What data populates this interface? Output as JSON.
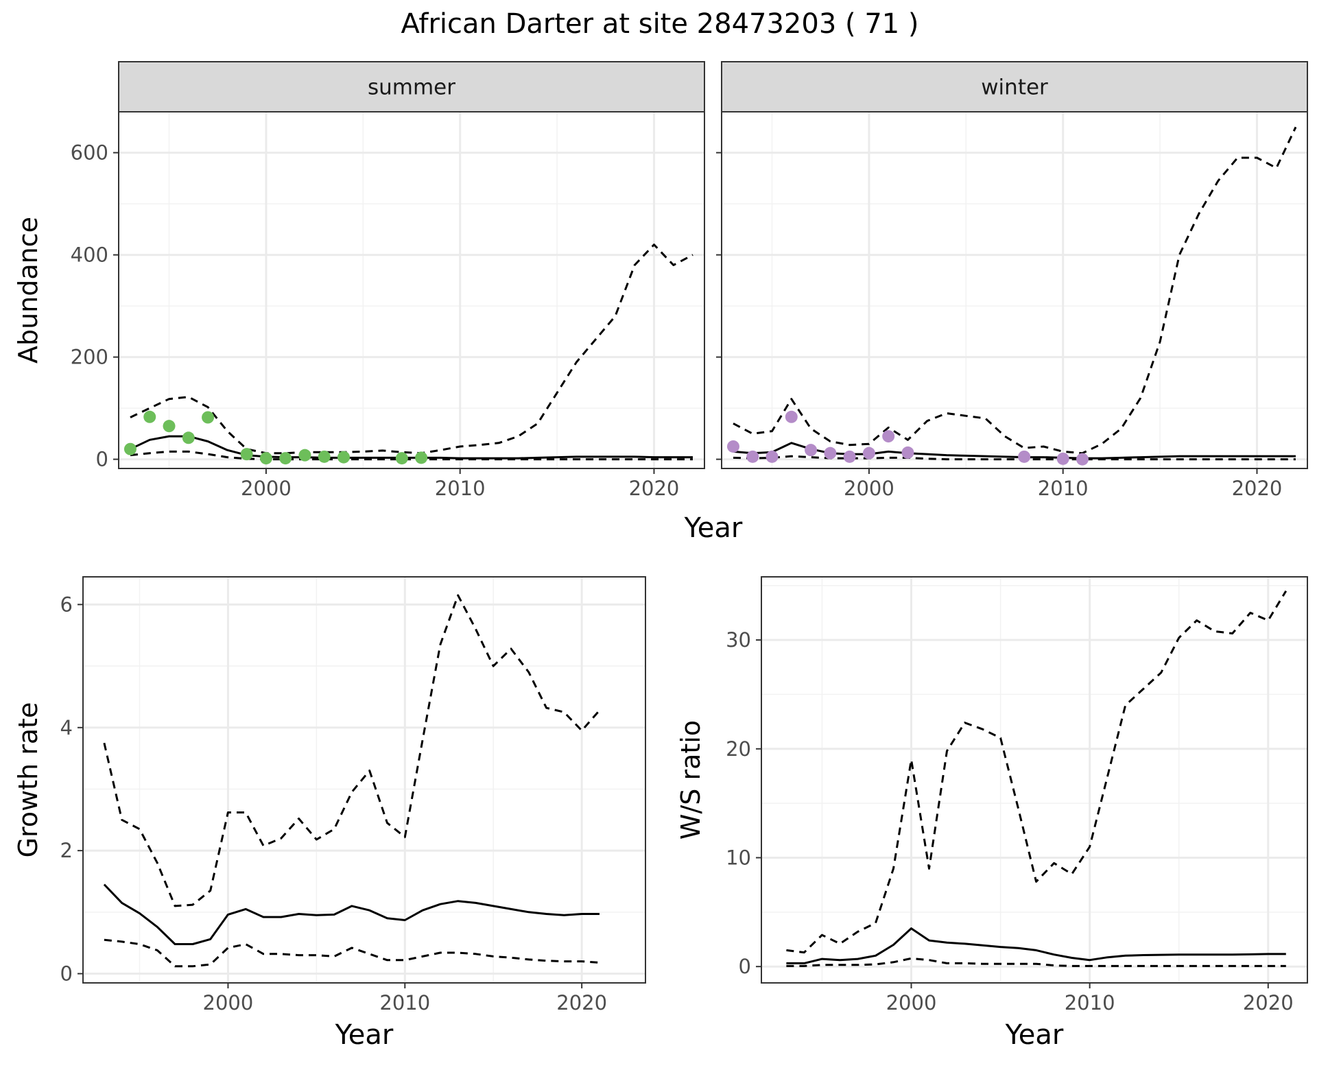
{
  "figure": {
    "title": "African Darter at site 28473203 ( 71 )"
  },
  "chart_data": [
    {
      "type": "line",
      "panel": "summer",
      "strip_label": "summer",
      "ylabel": "Abundance",
      "xlabel": "Year",
      "xlim": [
        1992.4,
        2022.6
      ],
      "ylim": [
        -18,
        680
      ],
      "xticks": [
        2000,
        2010,
        2020
      ],
      "yticks": [
        0,
        200,
        400,
        600
      ],
      "grid": true,
      "point_color": "#6DBE5A",
      "series": [
        {
          "role": "mean",
          "style": "solid",
          "x": [
            1993,
            1994,
            1995,
            1996,
            1997,
            1998,
            1999,
            2000,
            2001,
            2002,
            2003,
            2004,
            2005,
            2006,
            2007,
            2008,
            2009,
            2010,
            2011,
            2012,
            2013,
            2014,
            2015,
            2016,
            2017,
            2018,
            2019,
            2020,
            2021,
            2022
          ],
          "values": [
            20,
            38,
            45,
            45,
            35,
            18,
            8,
            5,
            4,
            4,
            3,
            3,
            3,
            3,
            3,
            3,
            3,
            2,
            2,
            2,
            2,
            3,
            4,
            5,
            5,
            5,
            5,
            4,
            4,
            4
          ]
        },
        {
          "role": "upper",
          "style": "dashed",
          "x": [
            1993,
            1994,
            1995,
            1996,
            1997,
            1998,
            1999,
            2000,
            2001,
            2002,
            2003,
            2004,
            2005,
            2006,
            2007,
            2008,
            2009,
            2010,
            2011,
            2012,
            2013,
            2014,
            2015,
            2016,
            2017,
            2018,
            2019,
            2020,
            2021,
            2022
          ],
          "values": [
            82,
            100,
            118,
            122,
            102,
            55,
            20,
            12,
            12,
            14,
            14,
            14,
            15,
            17,
            14,
            12,
            18,
            25,
            28,
            32,
            45,
            70,
            130,
            190,
            235,
            280,
            380,
            420,
            380,
            400
          ]
        },
        {
          "role": "lower",
          "style": "dashed",
          "x": [
            1993,
            1994,
            1995,
            1996,
            1997,
            1998,
            1999,
            2000,
            2001,
            2002,
            2003,
            2004,
            2005,
            2006,
            2007,
            2008,
            2009,
            2010,
            2011,
            2012,
            2013,
            2014,
            2015,
            2016,
            2017,
            2018,
            2019,
            2020,
            2021,
            2022
          ],
          "values": [
            8,
            12,
            15,
            15,
            10,
            4,
            1,
            0,
            0,
            0,
            0,
            0,
            0,
            0,
            0,
            0,
            0,
            0,
            0,
            0,
            0,
            0,
            0,
            0,
            0,
            0,
            0,
            0,
            0,
            0
          ]
        }
      ],
      "points": {
        "x": [
          1993,
          1994,
          1995,
          1996,
          1997,
          1999,
          2000,
          2001,
          2002,
          2003,
          2004,
          2007,
          2008
        ],
        "values": [
          20,
          83,
          65,
          42,
          82,
          10,
          2,
          2,
          8,
          5,
          4,
          2,
          3
        ]
      }
    },
    {
      "type": "line",
      "panel": "winter",
      "strip_label": "winter",
      "xlabel": "Year",
      "xlim": [
        1992.4,
        2022.6
      ],
      "ylim": [
        -18,
        680
      ],
      "xticks": [
        2000,
        2010,
        2020
      ],
      "yticks": [
        0,
        200,
        400,
        600
      ],
      "grid": true,
      "point_color": "#B48CC8",
      "series": [
        {
          "role": "mean",
          "style": "solid",
          "x": [
            1993,
            1994,
            1995,
            1996,
            1997,
            1998,
            1999,
            2000,
            2001,
            2002,
            2003,
            2004,
            2005,
            2006,
            2007,
            2008,
            2009,
            2010,
            2011,
            2012,
            2013,
            2014,
            2015,
            2016,
            2017,
            2018,
            2019,
            2020,
            2021,
            2022
          ],
          "values": [
            15,
            12,
            14,
            32,
            20,
            12,
            10,
            10,
            15,
            12,
            10,
            8,
            7,
            6,
            5,
            4,
            4,
            3,
            2,
            2,
            3,
            4,
            5,
            6,
            6,
            6,
            6,
            6,
            6,
            6
          ]
        },
        {
          "role": "upper",
          "style": "dashed",
          "x": [
            1993,
            1994,
            1995,
            1996,
            1997,
            1998,
            1999,
            2000,
            2001,
            2002,
            2003,
            2004,
            2005,
            2006,
            2007,
            2008,
            2009,
            2010,
            2011,
            2012,
            2013,
            2014,
            2015,
            2016,
            2017,
            2018,
            2019,
            2020,
            2021,
            2022
          ],
          "values": [
            70,
            50,
            55,
            118,
            60,
            35,
            28,
            30,
            62,
            38,
            75,
            90,
            85,
            80,
            45,
            22,
            25,
            15,
            12,
            30,
            60,
            120,
            230,
            400,
            480,
            545,
            590,
            590,
            570,
            650
          ]
        },
        {
          "role": "lower",
          "style": "dashed",
          "x": [
            1993,
            1994,
            1995,
            1996,
            1997,
            1998,
            1999,
            2000,
            2001,
            2002,
            2003,
            2004,
            2005,
            2006,
            2007,
            2008,
            2009,
            2010,
            2011,
            2012,
            2013,
            2014,
            2015,
            2016,
            2017,
            2018,
            2019,
            2020,
            2021,
            2022
          ],
          "values": [
            3,
            2,
            3,
            6,
            4,
            2,
            2,
            2,
            3,
            3,
            1,
            0,
            0,
            0,
            0,
            0,
            0,
            0,
            0,
            0,
            0,
            0,
            0,
            0,
            0,
            0,
            0,
            0,
            0,
            0
          ]
        }
      ],
      "points": {
        "x": [
          1993,
          1994,
          1995,
          1996,
          1997,
          1998,
          1999,
          2000,
          2001,
          2002,
          2008,
          2010,
          2011
        ],
        "values": [
          25,
          5,
          5,
          83,
          18,
          12,
          5,
          12,
          45,
          13,
          5,
          1,
          0
        ]
      }
    },
    {
      "type": "line",
      "panel": "growth",
      "ylabel": "Growth rate",
      "xlabel": "Year",
      "xlim": [
        1991.8,
        2023.6
      ],
      "ylim": [
        -0.15,
        6.45
      ],
      "xticks": [
        2000,
        2010,
        2020
      ],
      "yticks": [
        0,
        2,
        4,
        6
      ],
      "grid": true,
      "series": [
        {
          "role": "mean",
          "style": "solid",
          "x": [
            1993,
            1994,
            1995,
            1996,
            1997,
            1998,
            1999,
            2000,
            2001,
            2002,
            2003,
            2004,
            2005,
            2006,
            2007,
            2008,
            2009,
            2010,
            2011,
            2012,
            2013,
            2014,
            2015,
            2016,
            2017,
            2018,
            2019,
            2020,
            2021
          ],
          "values": [
            1.45,
            1.15,
            0.98,
            0.76,
            0.48,
            0.48,
            0.56,
            0.96,
            1.05,
            0.92,
            0.92,
            0.97,
            0.95,
            0.96,
            1.1,
            1.03,
            0.9,
            0.87,
            1.03,
            1.13,
            1.18,
            1.15,
            1.1,
            1.05,
            1.0,
            0.97,
            0.95,
            0.97,
            0.97
          ]
        },
        {
          "role": "upper",
          "style": "dashed",
          "x": [
            1993,
            1994,
            1995,
            1996,
            1997,
            1998,
            1999,
            2000,
            2001,
            2002,
            2003,
            2004,
            2005,
            2006,
            2007,
            2008,
            2009,
            2010,
            2011,
            2012,
            2013,
            2014,
            2015,
            2016,
            2017,
            2018,
            2019,
            2020,
            2021
          ],
          "values": [
            3.75,
            2.5,
            2.35,
            1.8,
            1.1,
            1.12,
            1.35,
            2.62,
            2.62,
            2.08,
            2.2,
            2.52,
            2.18,
            2.35,
            2.95,
            3.3,
            2.45,
            2.22,
            3.8,
            5.35,
            6.15,
            5.6,
            5.0,
            5.28,
            4.9,
            4.32,
            4.25,
            3.95,
            4.28
          ]
        },
        {
          "role": "lower",
          "style": "dashed",
          "x": [
            1993,
            1994,
            1995,
            1996,
            1997,
            1998,
            1999,
            2000,
            2001,
            2002,
            2003,
            2004,
            2005,
            2006,
            2007,
            2008,
            2009,
            2010,
            2011,
            2012,
            2013,
            2014,
            2015,
            2016,
            2017,
            2018,
            2019,
            2020,
            2021
          ],
          "values": [
            0.55,
            0.52,
            0.48,
            0.38,
            0.12,
            0.12,
            0.15,
            0.42,
            0.48,
            0.32,
            0.32,
            0.3,
            0.3,
            0.28,
            0.42,
            0.32,
            0.22,
            0.22,
            0.28,
            0.34,
            0.34,
            0.32,
            0.28,
            0.26,
            0.23,
            0.21,
            0.2,
            0.2,
            0.18
          ]
        }
      ]
    },
    {
      "type": "line",
      "panel": "ratio",
      "ylabel": "W/S ratio",
      "xlabel": "Year",
      "xlim": [
        1991.6,
        2022.2
      ],
      "ylim": [
        -1.5,
        35.8
      ],
      "xticks": [
        2000,
        2010,
        2020
      ],
      "yticks": [
        0,
        10,
        20,
        30
      ],
      "grid": true,
      "series": [
        {
          "role": "mean",
          "style": "solid",
          "x": [
            1993,
            1994,
            1995,
            1996,
            1997,
            1998,
            1999,
            2000,
            2001,
            2002,
            2003,
            2004,
            2005,
            2006,
            2007,
            2008,
            2009,
            2010,
            2011,
            2012,
            2013,
            2014,
            2015,
            2016,
            2017,
            2018,
            2019,
            2020,
            2021
          ],
          "values": [
            0.3,
            0.3,
            0.7,
            0.6,
            0.7,
            1.0,
            2.0,
            3.5,
            2.4,
            2.2,
            2.1,
            1.95,
            1.8,
            1.7,
            1.5,
            1.1,
            0.8,
            0.6,
            0.85,
            1.0,
            1.05,
            1.08,
            1.1,
            1.1,
            1.1,
            1.1,
            1.12,
            1.15,
            1.15
          ]
        },
        {
          "role": "upper",
          "style": "dashed",
          "x": [
            1993,
            1994,
            1995,
            1996,
            1997,
            1998,
            1999,
            2000,
            2001,
            2002,
            2003,
            2004,
            2005,
            2006,
            2007,
            2008,
            2009,
            2010,
            2011,
            2012,
            2013,
            2014,
            2015,
            2016,
            2017,
            2018,
            2019,
            2020,
            2021
          ],
          "values": [
            1.5,
            1.3,
            2.9,
            2.1,
            3.2,
            4.0,
            9.0,
            19.0,
            9.0,
            19.8,
            22.4,
            21.8,
            21.0,
            14.5,
            7.8,
            9.5,
            8.5,
            11.0,
            17.5,
            24.0,
            25.5,
            27.0,
            30.2,
            31.8,
            30.8,
            30.6,
            32.5,
            31.8,
            34.5
          ]
        },
        {
          "role": "lower",
          "style": "dashed",
          "x": [
            1993,
            1994,
            1995,
            1996,
            1997,
            1998,
            1999,
            2000,
            2001,
            2002,
            2003,
            2004,
            2005,
            2006,
            2007,
            2008,
            2009,
            2010,
            2011,
            2012,
            2013,
            2014,
            2015,
            2016,
            2017,
            2018,
            2019,
            2020,
            2021
          ],
          "values": [
            0.05,
            0.05,
            0.15,
            0.15,
            0.15,
            0.2,
            0.4,
            0.75,
            0.6,
            0.3,
            0.3,
            0.25,
            0.25,
            0.25,
            0.25,
            0.1,
            0.05,
            0.05,
            0.05,
            0.05,
            0.05,
            0.05,
            0.05,
            0.05,
            0.05,
            0.05,
            0.05,
            0.05,
            0.05
          ]
        }
      ]
    }
  ]
}
